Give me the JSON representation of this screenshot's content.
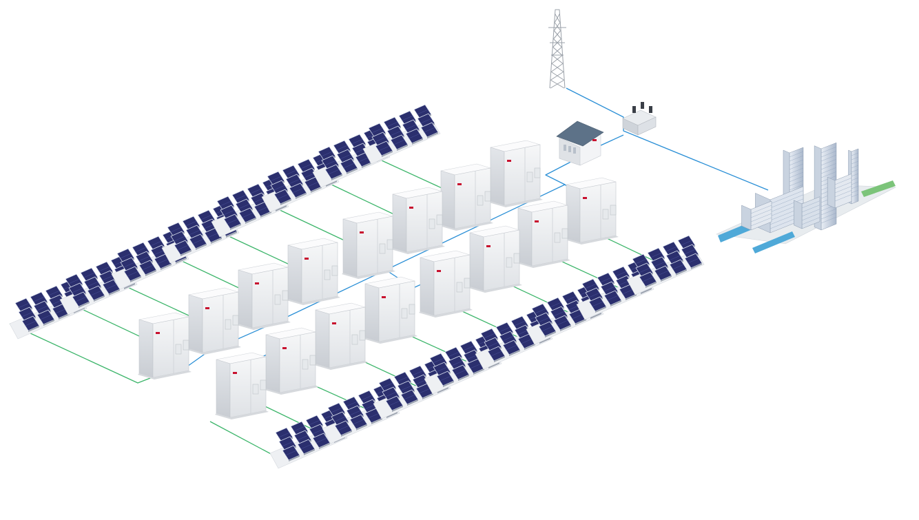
{
  "scene": {
    "background": "#ffffff",
    "ac_line_color": "#2a8fd6",
    "dc_line_color": "#3cb56a",
    "panel_color": "#2b2f6e",
    "cabinet_color": "#eef0f2",
    "logo_color": "#c8102e"
  },
  "components": {
    "transmission_tower": {
      "icon": "transmission-tower-icon"
    },
    "step_up_transformer": {
      "icon": "transformer-icon"
    },
    "control_house": {
      "icon": "house-icon"
    },
    "city_load": {
      "icon": "city-buildings-icon"
    },
    "energy_storage_cabinets": {
      "icon": "battery-cabinet-icon",
      "count": 16
    },
    "pv_arrays": {
      "icon": "solar-panel-icon",
      "count": 16
    }
  }
}
